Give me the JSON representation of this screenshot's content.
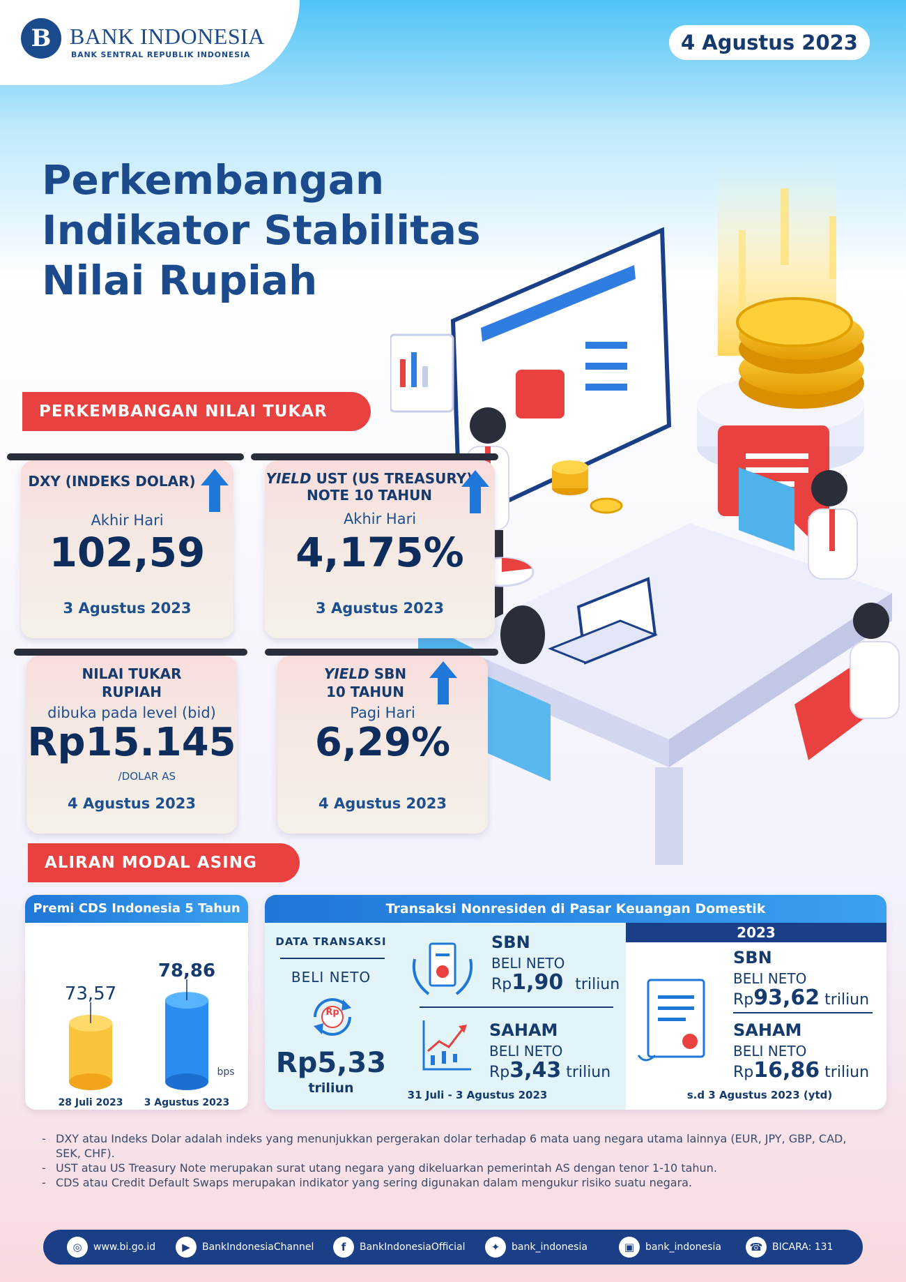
{
  "header": {
    "logo_mark": "B",
    "logo_name": "BANK INDONESIA",
    "logo_sub": "BANK SENTRAL REPUBLIK INDONESIA",
    "date": "4 Agustus 2023"
  },
  "title": {
    "line1": "Perkembangan",
    "line2": "Indikator Stabilitas",
    "line3": "Nilai Rupiah"
  },
  "sections": {
    "exchange": "PERKEMBANGAN NILAI TUKAR",
    "capital": "ALIRAN MODAL ASING"
  },
  "cards": {
    "dxy": {
      "title": "DXY (INDEKS DOLAR)",
      "sub": "Akhir Hari",
      "value": "102,59",
      "date": "3 Agustus 2023"
    },
    "ust": {
      "title_italic": "YIELD",
      "title_rest": " UST (US TREASURY)",
      "title2": "NOTE  10 TAHUN",
      "sub": "Akhir Hari",
      "value": "4,175%",
      "date": "3 Agustus 2023"
    },
    "rupiah": {
      "title1": "NILAI TUKAR",
      "title2": "RUPIAH",
      "sub": "dibuka pada level (bid)",
      "value": "Rp15.145",
      "unit": "/DOLAR AS",
      "date": "4 Agustus 2023"
    },
    "sbn": {
      "title_italic": "YIELD",
      "title_rest": " SBN",
      "title2": "10 TAHUN",
      "sub": "Pagi Hari",
      "value": "6,29%",
      "date": "4 Agustus 2023"
    }
  },
  "cds": {
    "title": "Premi CDS Indonesia 5 Tahun",
    "unit": "bps",
    "bars": [
      {
        "label": "28 Juli 2023",
        "value": 73.57,
        "value_text": "73,57"
      },
      {
        "label": "3 Agustus 2023",
        "value": 78.86,
        "value_text": "78,86"
      }
    ]
  },
  "nonresident": {
    "title": "Transaksi Nonresiden di Pasar Keuangan Domestik",
    "data_label": "DATA TRANSAKSI",
    "net_label": "BELI NETO",
    "rp_badge": "Rp",
    "total_prefix": "Rp",
    "total_value": "5,33",
    "total_unit": "triliun",
    "period": "31 Juli - 3 Agustus 2023",
    "sbn": {
      "name": "SBN",
      "net": "BELI NETO",
      "prefix": "Rp",
      "value": "1,90",
      "unit": "triliun"
    },
    "saham": {
      "name": "SAHAM",
      "net": "BELI NETO",
      "prefix": "Rp",
      "value": "3,43",
      "unit": "triliun"
    },
    "ytd": {
      "year": "2023",
      "sbn": {
        "name": "SBN",
        "net": "BELI NETO",
        "prefix": "Rp",
        "value": "93,62",
        "unit": "triliun"
      },
      "saham": {
        "name": "SAHAM",
        "net": "BELI NETO",
        "prefix": "Rp",
        "value": "16,86",
        "unit": "triliun"
      },
      "period": "s.d 3 Agustus 2023 (ytd)"
    }
  },
  "notes": [
    "DXY atau Indeks Dolar adalah indeks yang menunjukkan pergerakan dolar terhadap 6 mata uang negara utama lainnya (EUR, JPY, GBP, CAD, SEK, CHF).",
    "UST atau US Treasury Note merupakan surat utang negara yang dikeluarkan pemerintah AS dengan tenor 1-10 tahun.",
    "CDS atau Credit Default Swaps merupakan indikator yang sering digunakan dalam mengukur risiko suatu negara."
  ],
  "footer": {
    "web": "www.bi.go.id",
    "youtube": "BankIndonesiaChannel",
    "facebook": "BankIndonesiaOfficial",
    "twitter": "bank_indonesia",
    "instagram": "bank_indonesia",
    "bicara": "BICARA: 131",
    "icons": {
      "web": "globe-icon",
      "youtube": "play-icon",
      "facebook": "f",
      "twitter": "bird-icon",
      "instagram": "camera-icon",
      "bicara": "phone-icon"
    }
  },
  "colors": {
    "navy": "#143a6e",
    "red": "#e8413f",
    "blue": "#1f77d8",
    "gold": "#f5b400"
  }
}
